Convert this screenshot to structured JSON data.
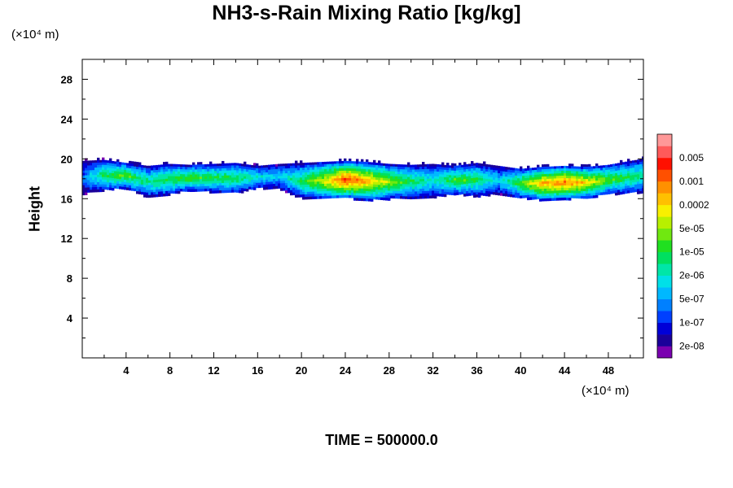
{
  "chart_data": {
    "type": "heatmap",
    "title": "NH3-s-Rain Mixing Ratio [kg/kg]",
    "ylabel": "Height",
    "x_unit": "(×10⁴ m)",
    "y_unit": "(×10⁴ m)",
    "xlim": [
      0,
      51.2
    ],
    "ylim": [
      0,
      30
    ],
    "x_ticks": [
      "4",
      "8",
      "12",
      "16",
      "20",
      "24",
      "28",
      "32",
      "36",
      "40",
      "44",
      "48"
    ],
    "y_ticks": [
      "4",
      "8",
      "12",
      "16",
      "20",
      "24",
      "28"
    ],
    "colorbar": {
      "levels": [
        "1e-08",
        "2e-08",
        "5e-08",
        "1e-07",
        "2e-07",
        "5e-07",
        "1e-06",
        "2e-06",
        "5e-06",
        "1e-05",
        "2e-05",
        "5e-05",
        "0.0001",
        "0.0002",
        "0.0005",
        "0.001",
        "0.002",
        "0.005",
        "0.01"
      ],
      "colors": [
        "#7a00b0",
        "#1a009a",
        "#0000d8",
        "#0040ff",
        "#0080ff",
        "#00b8ff",
        "#00e0e8",
        "#00e6a8",
        "#00e060",
        "#20e020",
        "#70e810",
        "#b8f000",
        "#f8f000",
        "#ffc000",
        "#ff9000",
        "#ff5000",
        "#ff1000",
        "#ff5a5a",
        "#ff9898"
      ],
      "labels": [
        "2e-08",
        "1e-07",
        "5e-07",
        "2e-06",
        "1e-05",
        "5e-05",
        "0.0002",
        "0.001",
        "0.005"
      ]
    },
    "field": {
      "description_layer": "cloud band",
      "band_center_km_x10e4": 18.2,
      "band_profile": [
        {
          "x": 0.0,
          "bottom": 16.8,
          "top": 19.8,
          "peak": 4
        },
        {
          "x": 2.0,
          "bottom": 17.2,
          "top": 19.9,
          "peak": 9
        },
        {
          "x": 4.0,
          "bottom": 17.4,
          "top": 19.6,
          "peak": 10
        },
        {
          "x": 6.0,
          "bottom": 16.5,
          "top": 19.3,
          "peak": 8
        },
        {
          "x": 8.0,
          "bottom": 16.8,
          "top": 19.5,
          "peak": 9
        },
        {
          "x": 10.0,
          "bottom": 17.2,
          "top": 19.4,
          "peak": 10
        },
        {
          "x": 12.0,
          "bottom": 17.0,
          "top": 19.5,
          "peak": 9
        },
        {
          "x": 14.0,
          "bottom": 16.9,
          "top": 19.6,
          "peak": 9
        },
        {
          "x": 16.0,
          "bottom": 17.4,
          "top": 19.3,
          "peak": 7
        },
        {
          "x": 18.0,
          "bottom": 17.3,
          "top": 19.5,
          "peak": 6
        },
        {
          "x": 20.0,
          "bottom": 16.4,
          "top": 19.6,
          "peak": 9
        },
        {
          "x": 22.0,
          "bottom": 16.3,
          "top": 19.7,
          "peak": 12
        },
        {
          "x": 24.0,
          "bottom": 16.4,
          "top": 19.8,
          "peak": 16
        },
        {
          "x": 26.0,
          "bottom": 16.2,
          "top": 19.7,
          "peak": 14
        },
        {
          "x": 28.0,
          "bottom": 16.3,
          "top": 19.5,
          "peak": 11
        },
        {
          "x": 30.0,
          "bottom": 16.4,
          "top": 19.4,
          "peak": 9
        },
        {
          "x": 32.0,
          "bottom": 16.5,
          "top": 19.5,
          "peak": 7
        },
        {
          "x": 34.0,
          "bottom": 16.8,
          "top": 19.3,
          "peak": 10
        },
        {
          "x": 36.0,
          "bottom": 16.6,
          "top": 19.6,
          "peak": 9
        },
        {
          "x": 38.0,
          "bottom": 16.8,
          "top": 19.3,
          "peak": 6
        },
        {
          "x": 40.0,
          "bottom": 16.4,
          "top": 19.0,
          "peak": 10
        },
        {
          "x": 42.0,
          "bottom": 16.2,
          "top": 19.2,
          "peak": 14
        },
        {
          "x": 44.0,
          "bottom": 16.3,
          "top": 19.3,
          "peak": 15
        },
        {
          "x": 46.0,
          "bottom": 16.4,
          "top": 19.2,
          "peak": 13
        },
        {
          "x": 48.0,
          "bottom": 16.8,
          "top": 19.4,
          "peak": 10
        },
        {
          "x": 50.0,
          "bottom": 16.9,
          "top": 19.8,
          "peak": 9
        },
        {
          "x": 51.2,
          "bottom": 17.0,
          "top": 20.0,
          "peak": 8
        }
      ]
    }
  },
  "footer": {
    "time_label": "TIME = 500000.0"
  }
}
